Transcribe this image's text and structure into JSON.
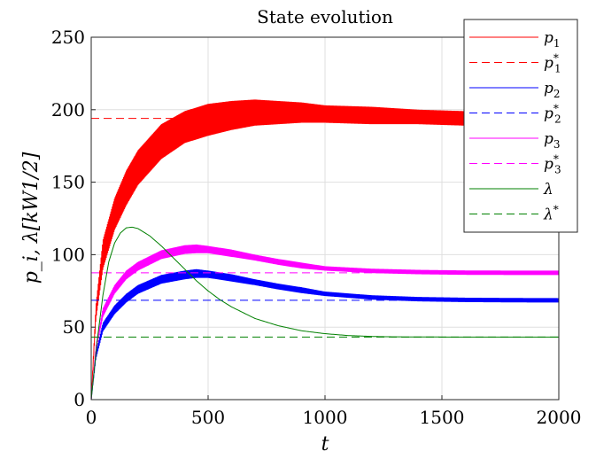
{
  "chart_data": {
    "type": "line",
    "title": "State evolution",
    "xlabel": "t",
    "ylabel": "p_i, λ[kW1/2]",
    "xlim": [
      0,
      2000
    ],
    "ylim": [
      0,
      250
    ],
    "xticks": [
      0,
      500,
      1000,
      1500,
      2000
    ],
    "yticks": [
      0,
      50,
      100,
      150,
      200,
      250
    ],
    "xtick_labels": [
      "0",
      "500",
      "1000",
      "1500",
      "2000"
    ],
    "ytick_labels": [
      "0",
      "50",
      "100",
      "150",
      "200",
      "250"
    ],
    "grid": true,
    "legend_position": "top-right",
    "series": [
      {
        "name": "p1",
        "label_base": "p",
        "label_sub": "1",
        "label_sup": "",
        "color": "#ff0000",
        "style": "solid",
        "oscillating": true,
        "x": [
          0,
          20,
          50,
          100,
          150,
          200,
          300,
          400,
          500,
          600,
          700,
          800,
          900,
          1000,
          1200,
          1400,
          1600,
          1800,
          2000
        ],
        "y": [
          0,
          60,
          100,
          128,
          146,
          160,
          178,
          188,
          193,
          196,
          198,
          198,
          198,
          197,
          196,
          195,
          194,
          194,
          194
        ],
        "amplitude": [
          0,
          5,
          10,
          11,
          12,
          12,
          12,
          11,
          11,
          10,
          9,
          8,
          7,
          6,
          6,
          5,
          5,
          5,
          5
        ]
      },
      {
        "name": "p1*",
        "label_base": "p",
        "label_sub": "1",
        "label_sup": "*",
        "color": "#ff0000",
        "style": "dashed",
        "oscillating": false,
        "x": [
          0,
          2000
        ],
        "y": [
          194,
          194
        ]
      },
      {
        "name": "p2",
        "label_base": "p",
        "label_sub": "2",
        "label_sup": "",
        "color": "#0000ff",
        "style": "solid",
        "oscillating": true,
        "x": [
          0,
          20,
          50,
          100,
          150,
          200,
          300,
          400,
          450,
          500,
          600,
          700,
          800,
          900,
          1000,
          1200,
          1400,
          1600,
          1800,
          2000
        ],
        "y": [
          0,
          30,
          50,
          62,
          70,
          76,
          83,
          86,
          87,
          86.5,
          84,
          81,
          78,
          75.5,
          73,
          70.5,
          69.3,
          68.8,
          68.6,
          68.5
        ],
        "amplitude": [
          0,
          2,
          3,
          3,
          3,
          3,
          3,
          3,
          3,
          2.5,
          2.5,
          2,
          2,
          2,
          1.5,
          1.5,
          1.5,
          1.5,
          1.5,
          1.5
        ]
      },
      {
        "name": "p2*",
        "label_base": "p",
        "label_sub": "2",
        "label_sup": "*",
        "color": "#0000ff",
        "style": "dashed",
        "oscillating": false,
        "x": [
          0,
          2000
        ],
        "y": [
          68.5,
          68.5
        ]
      },
      {
        "name": "p3",
        "label_base": "p",
        "label_sub": "3",
        "label_sup": "",
        "color": "#ff00ff",
        "style": "solid",
        "oscillating": true,
        "x": [
          0,
          20,
          50,
          100,
          150,
          200,
          300,
          400,
          450,
          500,
          600,
          700,
          800,
          900,
          1000,
          1200,
          1400,
          1600,
          1800,
          2000
        ],
        "y": [
          0,
          35,
          60,
          76,
          86,
          92,
          100,
          103.5,
          104,
          103.5,
          101,
          98,
          95,
          92.5,
          90.5,
          88.8,
          88,
          87.6,
          87.5,
          87.5
        ],
        "amplitude": [
          0,
          2,
          3,
          3,
          3,
          3,
          3,
          3,
          3,
          2.5,
          2.5,
          2,
          2,
          2,
          1.5,
          1.5,
          1.5,
          1.5,
          1.5,
          1.5
        ]
      },
      {
        "name": "p3*",
        "label_base": "p",
        "label_sub": "3",
        "label_sup": "*",
        "color": "#ff00ff",
        "style": "dashed",
        "oscillating": false,
        "x": [
          0,
          2000
        ],
        "y": [
          87.5,
          87.5
        ]
      },
      {
        "name": "λ",
        "label_base": "λ",
        "label_sub": "",
        "label_sup": "",
        "color": "#008000",
        "style": "solid",
        "oscillating": false,
        "x": [
          0,
          25,
          50,
          75,
          100,
          125,
          150,
          175,
          200,
          250,
          300,
          350,
          400,
          450,
          500,
          550,
          600,
          650,
          700,
          800,
          900,
          1000,
          1100,
          1200,
          1300,
          1500,
          1700,
          2000
        ],
        "y": [
          0,
          40,
          72,
          95,
          108,
          115,
          118.5,
          119,
          118,
          113,
          106,
          98,
          90,
          82,
          75,
          69,
          64,
          60,
          56,
          51,
          47.5,
          45.5,
          44.2,
          43.6,
          43.3,
          43.2,
          43.2,
          43.2
        ]
      },
      {
        "name": "λ*",
        "label_base": "λ",
        "label_sub": "",
        "label_sup": "*",
        "color": "#008000",
        "style": "dashed",
        "oscillating": false,
        "x": [
          0,
          2000
        ],
        "y": [
          43.2,
          43.2
        ]
      }
    ]
  }
}
